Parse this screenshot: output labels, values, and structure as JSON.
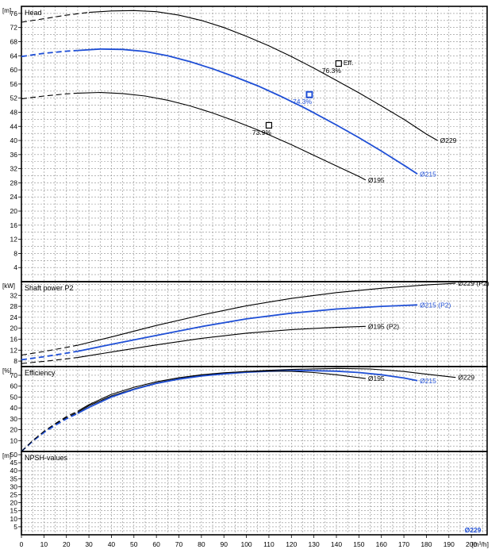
{
  "chart_data": [
    {
      "type": "line",
      "panel": "head",
      "title": "Head",
      "unit": "[m]",
      "xlim": [
        0,
        207
      ],
      "ylim": [
        0,
        78
      ],
      "y_ticks": [
        4,
        8,
        12,
        16,
        20,
        24,
        28,
        32,
        36,
        40,
        44,
        48,
        52,
        56,
        60,
        64,
        68,
        72,
        76
      ],
      "grid": true,
      "series": [
        {
          "name": "Ø229",
          "color": "#000000",
          "dashed_points": [
            [
              0,
              73.5
            ],
            [
              10,
              74.5
            ],
            [
              20,
              75.5
            ],
            [
              30,
              76.3
            ]
          ],
          "points": [
            [
              30,
              76.3
            ],
            [
              40,
              76.7
            ],
            [
              50,
              76.8
            ],
            [
              60,
              76.5
            ],
            [
              70,
              75.5
            ],
            [
              80,
              74.0
            ],
            [
              90,
              72.0
            ],
            [
              100,
              69.5
            ],
            [
              110,
              66.8
            ],
            [
              120,
              63.8
            ],
            [
              130,
              60.5
            ],
            [
              140,
              57.0
            ],
            [
              150,
              53.5
            ],
            [
              160,
              49.8
            ],
            [
              170,
              46.0
            ],
            [
              180,
              41.8
            ],
            [
              185,
              40.0
            ]
          ]
        },
        {
          "name": "Ø215",
          "color": "#1f4fd6",
          "dashed_points": [
            [
              0,
              63.8
            ],
            [
              10,
              64.7
            ],
            [
              20,
              65.3
            ],
            [
              25,
              65.5
            ]
          ],
          "points": [
            [
              25,
              65.5
            ],
            [
              35,
              65.9
            ],
            [
              45,
              65.8
            ],
            [
              55,
              65.2
            ],
            [
              65,
              64.0
            ],
            [
              75,
              62.3
            ],
            [
              85,
              60.3
            ],
            [
              95,
              58.0
            ],
            [
              105,
              55.5
            ],
            [
              115,
              52.6
            ],
            [
              125,
              49.5
            ],
            [
              128,
              48.5
            ],
            [
              140,
              44.4
            ],
            [
              150,
              40.8
            ],
            [
              160,
              37.0
            ],
            [
              170,
              33.0
            ],
            [
              176,
              30.5
            ]
          ]
        },
        {
          "name": "Ø195",
          "color": "#000000",
          "dashed_points": [
            [
              0,
              51.8
            ],
            [
              10,
              52.6
            ],
            [
              20,
              53.2
            ],
            [
              25,
              53.4
            ]
          ],
          "points": [
            [
              25,
              53.4
            ],
            [
              35,
              53.6
            ],
            [
              45,
              53.3
            ],
            [
              55,
              52.6
            ],
            [
              65,
              51.4
            ],
            [
              75,
              49.8
            ],
            [
              85,
              47.8
            ],
            [
              95,
              45.5
            ],
            [
              105,
              43.0
            ],
            [
              110,
              41.6
            ],
            [
              120,
              38.8
            ],
            [
              130,
              35.8
            ],
            [
              140,
              32.8
            ],
            [
              150,
              29.8
            ],
            [
              153,
              28.8
            ]
          ]
        }
      ],
      "markers": [
        {
          "series": "Ø229",
          "x": 141.0,
          "y": 61.8,
          "label": "76.3%",
          "label2": "Eff.",
          "color": "#000000"
        },
        {
          "series": "Ø215",
          "x": 128.0,
          "y": 53.0,
          "label": "74.3%",
          "color": "#1f4fd6"
        },
        {
          "series": "Ø195",
          "x": 110.0,
          "y": 44.3,
          "label": "73.9%",
          "color": "#000000"
        }
      ],
      "series_labels": [
        "Ø229",
        "Ø215",
        "Ø195"
      ]
    },
    {
      "type": "line",
      "panel": "shaft_power",
      "title": "Shaft power P2",
      "unit": "[kW]",
      "xlim": [
        0,
        207
      ],
      "ylim": [
        6,
        37
      ],
      "y_ticks": [
        8,
        12,
        16,
        20,
        24,
        28,
        32
      ],
      "grid": true,
      "series": [
        {
          "name": "Ø229 (P2)",
          "color": "#000000",
          "dashed_points": [
            [
              0,
              10.2
            ],
            [
              10,
              11.5
            ],
            [
              20,
              13.0
            ],
            [
              25,
              13.8
            ]
          ],
          "points": [
            [
              25,
              13.8
            ],
            [
              40,
              16.8
            ],
            [
              60,
              21.0
            ],
            [
              80,
              24.8
            ],
            [
              100,
              28.2
            ],
            [
              120,
              30.9
            ],
            [
              140,
              33.0
            ],
            [
              160,
              34.6
            ],
            [
              180,
              35.8
            ],
            [
              193,
              36.4
            ]
          ]
        },
        {
          "name": "Ø215 (P2)",
          "color": "#1f4fd6",
          "dashed_points": [
            [
              0,
              8.5
            ],
            [
              10,
              9.6
            ],
            [
              20,
              10.9
            ],
            [
              25,
              11.6
            ]
          ],
          "points": [
            [
              25,
              11.6
            ],
            [
              40,
              14.1
            ],
            [
              60,
              17.4
            ],
            [
              80,
              20.6
            ],
            [
              100,
              23.4
            ],
            [
              120,
              25.5
            ],
            [
              140,
              27.0
            ],
            [
              160,
              28.0
            ],
            [
              176,
              28.5
            ]
          ]
        },
        {
          "name": "Ø195 (P2)",
          "color": "#000000",
          "dashed_points": [
            [
              0,
              7.1
            ],
            [
              10,
              7.9
            ],
            [
              20,
              8.8
            ],
            [
              25,
              9.3
            ]
          ],
          "points": [
            [
              25,
              9.3
            ],
            [
              40,
              11.3
            ],
            [
              60,
              13.9
            ],
            [
              80,
              16.3
            ],
            [
              100,
              18.2
            ],
            [
              120,
              19.5
            ],
            [
              140,
              20.3
            ],
            [
              153,
              20.7
            ]
          ]
        }
      ]
    },
    {
      "type": "line",
      "panel": "efficiency",
      "title": "Efficiency",
      "unit": "[%]",
      "xlim": [
        0,
        207
      ],
      "ylim": [
        0,
        78
      ],
      "y_ticks": [
        10,
        20,
        30,
        40,
        50,
        60,
        70
      ],
      "grid": true,
      "series": [
        {
          "name": "Ø229",
          "color": "#000000",
          "dashed_points": [
            [
              0,
              0
            ],
            [
              5,
              10
            ],
            [
              10,
              18
            ],
            [
              15,
              25
            ],
            [
              20,
              31
            ],
            [
              25,
              36
            ]
          ],
          "points": [
            [
              25,
              36
            ],
            [
              30,
              42
            ],
            [
              40,
              51
            ],
            [
              50,
              57.5
            ],
            [
              60,
              63
            ],
            [
              70,
              67
            ],
            [
              80,
              70
            ],
            [
              90,
              72
            ],
            [
              100,
              73.5
            ],
            [
              110,
              74.6
            ],
            [
              120,
              75.4
            ],
            [
              130,
              75.9
            ],
            [
              141,
              76.3
            ],
            [
              155,
              75.8
            ],
            [
              170,
              73.5
            ],
            [
              180,
              71
            ],
            [
              193,
              68
            ]
          ]
        },
        {
          "name": "Ø215",
          "color": "#1f4fd6",
          "dashed_points": [
            [
              0,
              0
            ],
            [
              5,
              9.5
            ],
            [
              10,
              17.5
            ],
            [
              15,
              24
            ],
            [
              20,
              30
            ],
            [
              25,
              35
            ]
          ],
          "points": [
            [
              25,
              35
            ],
            [
              30,
              40.5
            ],
            [
              40,
              50
            ],
            [
              50,
              57
            ],
            [
              60,
              62.5
            ],
            [
              70,
              66.5
            ],
            [
              80,
              69.3
            ],
            [
              90,
              71.3
            ],
            [
              100,
              72.8
            ],
            [
              110,
              73.8
            ],
            [
              120,
              74.2
            ],
            [
              128,
              74.3
            ],
            [
              140,
              73.8
            ],
            [
              150,
              72.5
            ],
            [
              160,
              70.5
            ],
            [
              170,
              67.5
            ],
            [
              176,
              65
            ]
          ]
        },
        {
          "name": "Ø195",
          "color": "#000000",
          "dashed_points": [
            [
              0,
              0
            ],
            [
              5,
              10
            ],
            [
              10,
              18.5
            ],
            [
              15,
              25.5
            ],
            [
              20,
              32
            ],
            [
              25,
              37
            ]
          ],
          "points": [
            [
              25,
              37
            ],
            [
              30,
              43
            ],
            [
              40,
              52.5
            ],
            [
              50,
              59
            ],
            [
              60,
              64
            ],
            [
              70,
              67.8
            ],
            [
              80,
              70.5
            ],
            [
              90,
              72.3
            ],
            [
              100,
              73.4
            ],
            [
              110,
              73.9
            ],
            [
              120,
              73.7
            ],
            [
              130,
              72.5
            ],
            [
              140,
              70.5
            ],
            [
              153,
              67
            ]
          ]
        }
      ]
    },
    {
      "type": "line",
      "panel": "npsh",
      "title": "NPSH-values",
      "unit": "[m]",
      "xlim": [
        0,
        207
      ],
      "ylim": [
        0,
        52
      ],
      "y_ticks": [
        5,
        10,
        15,
        20,
        25,
        30,
        35,
        40,
        45,
        50
      ],
      "x_ticks": [
        0,
        10,
        20,
        30,
        40,
        50,
        60,
        70,
        80,
        90,
        100,
        110,
        120,
        130,
        140,
        150,
        160,
        170,
        180,
        190,
        200
      ],
      "xlabel": "[m³/h]",
      "grid": true,
      "series": [],
      "end_label": "Ø229"
    }
  ]
}
